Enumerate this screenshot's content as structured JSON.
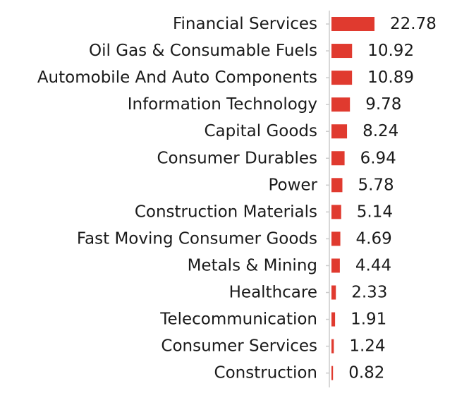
{
  "chart_data": {
    "type": "bar",
    "orientation": "horizontal",
    "categories": [
      "Financial Services",
      "Oil Gas & Consumable Fuels",
      "Automobile And Auto Components",
      "Information Technology",
      "Capital Goods",
      "Consumer Durables",
      "Power",
      "Construction Materials",
      "Fast Moving Consumer Goods",
      "Metals & Mining",
      "Healthcare",
      "Telecommunication",
      "Consumer Services",
      "Construction"
    ],
    "values": [
      22.78,
      10.92,
      10.89,
      9.78,
      8.24,
      6.94,
      5.78,
      5.14,
      4.69,
      4.44,
      2.33,
      1.91,
      1.24,
      0.82
    ],
    "value_labels": [
      "22.78",
      "10.92",
      "10.89",
      "9.78",
      "8.24",
      "6.94",
      "5.78",
      "5.14",
      "4.69",
      "4.44",
      "2.33",
      "1.91",
      "1.24",
      "0.82"
    ],
    "title": "",
    "xlabel": "",
    "ylabel": "",
    "xlim": [
      0,
      23
    ],
    "grid": false,
    "legend": "none",
    "bar_color": "#e03a2f",
    "axis_color": "#cccccc"
  }
}
